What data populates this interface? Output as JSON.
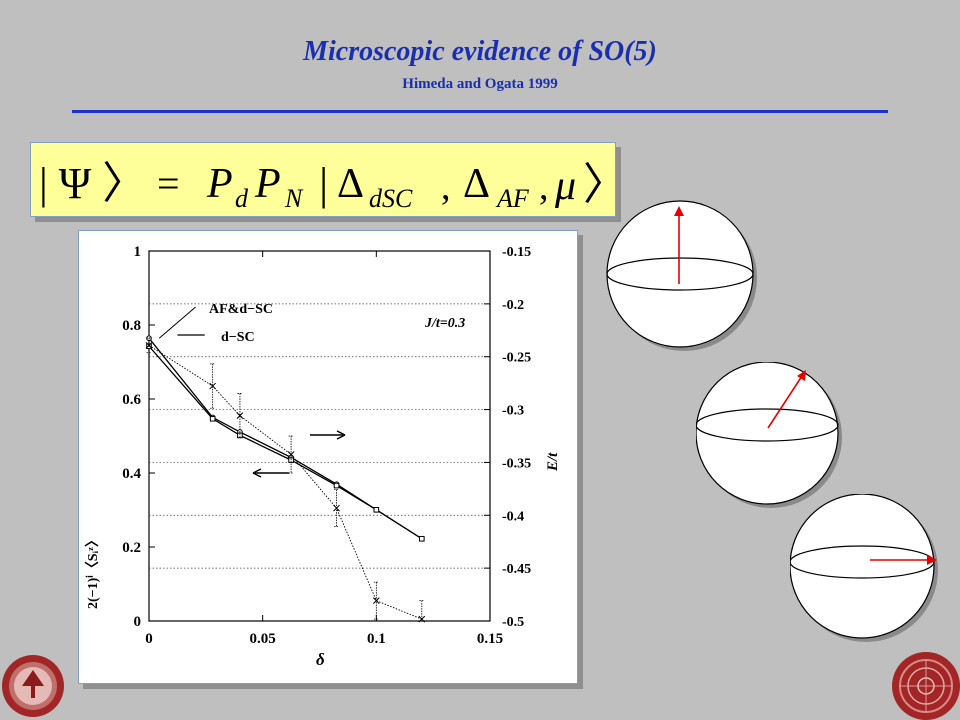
{
  "slide": {
    "title": "Microscopic evidence of SO(5)",
    "subtitle": "Himeda and Ogata 1999"
  },
  "equation": {
    "lhs": "| Ψ 〉",
    "equals": "=",
    "projectors": [
      "P",
      "d",
      "P",
      "N"
    ],
    "rhs_open": "|",
    "delta_sc": [
      "Δ",
      "dSC"
    ],
    "comma": ",",
    "delta_af": [
      "Δ",
      "AF"
    ],
    "mu": "μ",
    "rhs_close": "〉"
  },
  "colors": {
    "background": "#bfbfbf",
    "title": "#1a2fb0",
    "rule": "#1a33cc",
    "equation_fill": "#ffff99",
    "arrow": "#e60000"
  },
  "chart_data": {
    "type": "line",
    "xlabel": "δ",
    "ylabel_left": "2(−1)ⁱ〈Sᵢᶻ〉",
    "ylabel_right": "E/t",
    "annotation": "J/t=0.3",
    "legend": [
      "AF&d−SC",
      "d−SC"
    ],
    "xlim": [
      0,
      0.15
    ],
    "ylim_left": [
      0,
      1
    ],
    "ylim_right": [
      -0.5,
      -0.15
    ],
    "x_ticks": [
      "0",
      "0.05",
      "0.1",
      "0.15"
    ],
    "y_left_ticks": [
      "0",
      "0.2",
      "0.4",
      "0.6",
      "0.8",
      "1"
    ],
    "y_right_ticks": [
      "-0.5",
      "-0.45",
      "-0.4",
      "-0.35",
      "-0.3",
      "-0.25",
      "-0.2",
      "-0.15"
    ],
    "series": [
      {
        "name": "AF&d−SC",
        "axis": "right",
        "marker": "circle",
        "x": [
          0,
          0.028,
          0.04,
          0.0625,
          0.0825,
          0.1,
          0.12
        ],
        "y": [
          -0.2325,
          -0.3074,
          -0.3212,
          -0.3453,
          -0.3706,
          -0.3948,
          -0.4222
        ]
      },
      {
        "name": "d−SC",
        "axis": "right",
        "marker": "square",
        "x": [
          0,
          0.028,
          0.04,
          0.0625,
          0.0825,
          0.1,
          0.12
        ],
        "y": [
          -0.2401,
          -0.3087,
          -0.3244,
          -0.3478,
          -0.3719,
          -0.3948,
          -0.4222
        ]
      },
      {
        "axis": "left",
        "marker": "cross",
        "x": [
          0,
          0.028,
          0.04,
          0.0625,
          0.0825,
          0.1,
          0.12
        ],
        "y": [
          0.745,
          0.635,
          0.555,
          0.45,
          0.305,
          0.055,
          0.005
        ],
        "err": [
          0.02,
          0.06,
          0.06,
          0.05,
          0.05,
          0.05,
          0.05
        ]
      }
    ],
    "arrows": [
      {
        "direction": "right",
        "axis": "right"
      },
      {
        "direction": "left",
        "axis": "left"
      }
    ]
  },
  "spheres": [
    {
      "name": "sphere-top",
      "arrow": "vertical"
    },
    {
      "name": "sphere-middle",
      "arrow": "tilted"
    },
    {
      "name": "sphere-bottom",
      "arrow": "horizontal"
    }
  ],
  "seals": [
    "stanford-seal-icon",
    "university-seal-icon"
  ]
}
